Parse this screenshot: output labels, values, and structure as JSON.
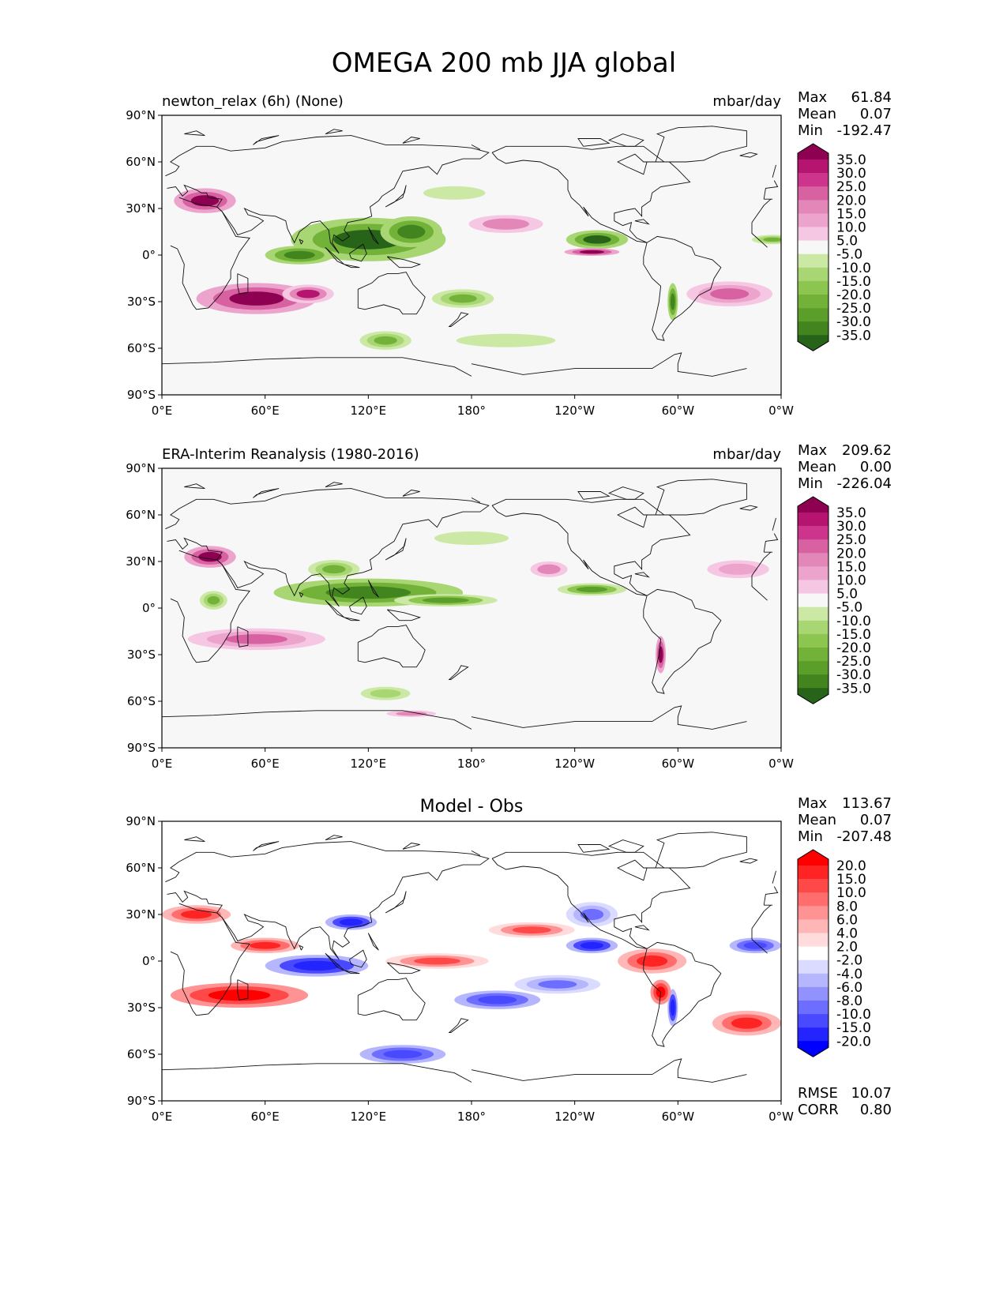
{
  "figure_title": "OMEGA 200 mb JJA global",
  "panels": [
    {
      "title_left": "newton_relax (6h) (None)",
      "title_center": "",
      "units": "mbar/day",
      "stats": [
        {
          "label": "Max",
          "value": "61.84"
        },
        {
          "label": "Mean",
          "value": "0.07"
        },
        {
          "label": "Min",
          "value": "-192.47"
        }
      ],
      "footer_stats": [],
      "colormap": "PiYG_r",
      "colorbar_levels": [
        "35.0",
        "30.0",
        "25.0",
        "20.0",
        "15.0",
        "10.0",
        "5.0",
        "-5.0",
        "-10.0",
        "-15.0",
        "-20.0",
        "-25.0",
        "-30.0",
        "-35.0"
      ]
    },
    {
      "title_left": "ERA-Interim Reanalysis (1980-2016)",
      "title_center": "",
      "units": "mbar/day",
      "stats": [
        {
          "label": "Max",
          "value": "209.62"
        },
        {
          "label": "Mean",
          "value": "0.00"
        },
        {
          "label": "Min",
          "value": "-226.04"
        }
      ],
      "footer_stats": [],
      "colormap": "PiYG_r",
      "colorbar_levels": [
        "35.0",
        "30.0",
        "25.0",
        "20.0",
        "15.0",
        "10.0",
        "5.0",
        "-5.0",
        "-10.0",
        "-15.0",
        "-20.0",
        "-25.0",
        "-30.0",
        "-35.0"
      ]
    },
    {
      "title_left": "",
      "title_center": "Model - Obs",
      "units": "",
      "stats": [
        {
          "label": "Max",
          "value": "113.67"
        },
        {
          "label": "Mean",
          "value": "0.07"
        },
        {
          "label": "Min",
          "value": "-207.48"
        }
      ],
      "footer_stats": [
        {
          "label": "RMSE",
          "value": "10.07"
        },
        {
          "label": "CORR",
          "value": "0.80"
        }
      ],
      "colormap": "bwr",
      "colorbar_levels": [
        "20.0",
        "15.0",
        "10.0",
        "8.0",
        "6.0",
        "4.0",
        "2.0",
        "-2.0",
        "-4.0",
        "-6.0",
        "-8.0",
        "-10.0",
        "-15.0",
        "-20.0"
      ]
    }
  ],
  "chart_data": [
    {
      "type": "heatmap",
      "title": "newton_relax (6h) (None)",
      "units": "mbar/day",
      "xlim": [
        0,
        360
      ],
      "ylim": [
        -90,
        90
      ],
      "x_ticks": [
        "0°E",
        "60°E",
        "120°E",
        "180°",
        "120°W",
        "60°W",
        "0°W"
      ],
      "y_ticks": [
        "90°N",
        "60°N",
        "30°N",
        "0°",
        "30°S",
        "60°S",
        "90°S"
      ],
      "levels": [
        -35,
        -30,
        -25,
        -20,
        -15,
        -10,
        -5,
        5,
        10,
        15,
        20,
        25,
        30,
        35
      ],
      "features": [
        {
          "lon": 25,
          "lat": 35,
          "rx": 18,
          "ry": 8,
          "value": 40
        },
        {
          "lon": 55,
          "lat": -28,
          "rx": 35,
          "ry": 10,
          "value": 35
        },
        {
          "lon": 85,
          "lat": -25,
          "rx": 15,
          "ry": 6,
          "value": 30
        },
        {
          "lon": 120,
          "lat": 10,
          "rx": 45,
          "ry": 14,
          "value": -40
        },
        {
          "lon": 80,
          "lat": 0,
          "rx": 20,
          "ry": 6,
          "value": -35
        },
        {
          "lon": 145,
          "lat": 15,
          "rx": 18,
          "ry": 10,
          "value": -35
        },
        {
          "lon": 253,
          "lat": 10,
          "rx": 18,
          "ry": 6,
          "value": -40
        },
        {
          "lon": 250,
          "lat": 2,
          "rx": 16,
          "ry": 2.5,
          "value": 35
        },
        {
          "lon": 175,
          "lat": -28,
          "rx": 18,
          "ry": 6,
          "value": -25
        },
        {
          "lon": 130,
          "lat": -55,
          "rx": 15,
          "ry": 6,
          "value": -25
        },
        {
          "lon": 200,
          "lat": 20,
          "rx": 30,
          "ry": 8,
          "value": 15
        },
        {
          "lon": 330,
          "lat": -25,
          "rx": 25,
          "ry": 8,
          "value": 20
        },
        {
          "lon": 297,
          "lat": -30,
          "rx": 3,
          "ry": 12,
          "value": -35
        },
        {
          "lon": 355,
          "lat": 10,
          "rx": 12,
          "ry": 3,
          "value": -25
        },
        {
          "lon": 170,
          "lat": 40,
          "rx": 25,
          "ry": 6,
          "value": -10
        },
        {
          "lon": 200,
          "lat": -55,
          "rx": 40,
          "ry": 6,
          "value": -10
        }
      ]
    },
    {
      "type": "heatmap",
      "title": "ERA-Interim Reanalysis (1980-2016)",
      "units": "mbar/day",
      "xlim": [
        0,
        360
      ],
      "ylim": [
        -90,
        90
      ],
      "x_ticks": [
        "0°E",
        "60°E",
        "120°E",
        "180°",
        "120°W",
        "60°W",
        "0°W"
      ],
      "y_ticks": [
        "90°N",
        "60°N",
        "30°N",
        "0°",
        "30°S",
        "60°S",
        "90°S"
      ],
      "levels": [
        -35,
        -30,
        -25,
        -20,
        -15,
        -10,
        -5,
        5,
        10,
        15,
        20,
        25,
        30,
        35
      ],
      "features": [
        {
          "lon": 28,
          "lat": 33,
          "rx": 15,
          "ry": 7,
          "value": 40
        },
        {
          "lon": 120,
          "lat": 10,
          "rx": 55,
          "ry": 9,
          "value": -35
        },
        {
          "lon": 100,
          "lat": 25,
          "rx": 15,
          "ry": 6,
          "value": -25
        },
        {
          "lon": 165,
          "lat": 5,
          "rx": 30,
          "ry": 4,
          "value": -30
        },
        {
          "lon": 250,
          "lat": 12,
          "rx": 20,
          "ry": 4,
          "value": -30
        },
        {
          "lon": 55,
          "lat": -20,
          "rx": 40,
          "ry": 7,
          "value": 20
        },
        {
          "lon": 30,
          "lat": 5,
          "rx": 8,
          "ry": 6,
          "value": -25
        },
        {
          "lon": 290,
          "lat": -30,
          "rx": 3,
          "ry": 12,
          "value": 40
        },
        {
          "lon": 225,
          "lat": 25,
          "rx": 15,
          "ry": 7,
          "value": 15
        },
        {
          "lon": 130,
          "lat": -55,
          "rx": 20,
          "ry": 6,
          "value": -15
        },
        {
          "lon": 145,
          "lat": -68,
          "rx": 20,
          "ry": 3,
          "value": 15
        },
        {
          "lon": 180,
          "lat": 45,
          "rx": 30,
          "ry": 6,
          "value": -10
        },
        {
          "lon": 335,
          "lat": 25,
          "rx": 25,
          "ry": 8,
          "value": 10
        }
      ]
    },
    {
      "type": "heatmap",
      "title": "Model - Obs",
      "units": "",
      "xlim": [
        0,
        360
      ],
      "ylim": [
        -90,
        90
      ],
      "x_ticks": [
        "0°E",
        "60°E",
        "120°E",
        "180°",
        "120°W",
        "60°W",
        "0°W"
      ],
      "y_ticks": [
        "90°N",
        "60°N",
        "30°N",
        "0°",
        "30°S",
        "60°S",
        "90°S"
      ],
      "levels": [
        -20,
        -15,
        -10,
        -8,
        -6,
        -4,
        -2,
        2,
        4,
        6,
        8,
        10,
        15,
        20
      ],
      "features": [
        {
          "lon": 45,
          "lat": -22,
          "rx": 40,
          "ry": 8,
          "value": 20
        },
        {
          "lon": 90,
          "lat": -3,
          "rx": 30,
          "ry": 7,
          "value": -20
        },
        {
          "lon": 110,
          "lat": 25,
          "rx": 15,
          "ry": 5,
          "value": -20
        },
        {
          "lon": 20,
          "lat": 30,
          "rx": 20,
          "ry": 6,
          "value": 15
        },
        {
          "lon": 250,
          "lat": 10,
          "rx": 15,
          "ry": 5,
          "value": -20
        },
        {
          "lon": 285,
          "lat": 0,
          "rx": 20,
          "ry": 8,
          "value": 15
        },
        {
          "lon": 297,
          "lat": -30,
          "rx": 3,
          "ry": 12,
          "value": -20
        },
        {
          "lon": 290,
          "lat": -20,
          "rx": 6,
          "ry": 8,
          "value": 20
        },
        {
          "lon": 195,
          "lat": -25,
          "rx": 25,
          "ry": 6,
          "value": -15
        },
        {
          "lon": 140,
          "lat": -60,
          "rx": 25,
          "ry": 6,
          "value": -15
        },
        {
          "lon": 340,
          "lat": -40,
          "rx": 20,
          "ry": 8,
          "value": 15
        },
        {
          "lon": 160,
          "lat": 0,
          "rx": 30,
          "ry": 5,
          "value": 10
        },
        {
          "lon": 215,
          "lat": 20,
          "rx": 25,
          "ry": 5,
          "value": 10
        },
        {
          "lon": 250,
          "lat": 30,
          "rx": 15,
          "ry": 8,
          "value": -10
        },
        {
          "lon": 345,
          "lat": 10,
          "rx": 15,
          "ry": 5,
          "value": -15
        },
        {
          "lon": 60,
          "lat": 10,
          "rx": 20,
          "ry": 5,
          "value": 15
        },
        {
          "lon": 230,
          "lat": -15,
          "rx": 25,
          "ry": 6,
          "value": -10
        }
      ]
    }
  ]
}
